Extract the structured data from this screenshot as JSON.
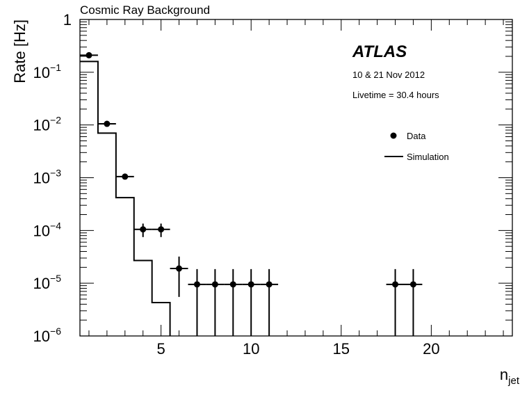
{
  "chart_data": {
    "type": "scatter",
    "title": "Cosmic Ray Background",
    "xlabel": "n",
    "xlabel_sub": "jet",
    "ylabel": "Rate [Hz]",
    "xlim": [
      0.5,
      24.5
    ],
    "ylim": [
      1e-06,
      1
    ],
    "yscale": "log",
    "grid": false,
    "x_ticks": [
      5,
      10,
      15,
      20
    ],
    "x_tick_labels": [
      "5",
      "10",
      "15",
      "20"
    ],
    "y_ticks": [
      1e-06,
      1e-05,
      0.0001,
      0.001,
      0.01,
      0.1,
      1
    ],
    "y_tick_labels": [
      {
        "base": "10",
        "exp": "−6"
      },
      {
        "base": "10",
        "exp": "−5"
      },
      {
        "base": "10",
        "exp": "−4"
      },
      {
        "base": "10",
        "exp": "−3"
      },
      {
        "base": "10",
        "exp": "−2"
      },
      {
        "base": "10",
        "exp": "−1"
      },
      {
        "base": "1",
        "exp": ""
      }
    ],
    "annotations": {
      "experiment": "ATLAS",
      "dates": "10 & 21 Nov 2012",
      "livetime": "Livetime = 30.4 hours"
    },
    "legend": {
      "placement": "top-right",
      "entries": [
        {
          "label": "Data",
          "marker": "point"
        },
        {
          "label": "Simulation",
          "marker": "line"
        }
      ]
    },
    "series": [
      {
        "name": "Data",
        "kind": "points",
        "points": [
          {
            "x": 1,
            "y": 0.21,
            "ylo": 0.2,
            "yhi": 0.22
          },
          {
            "x": 2,
            "y": 0.0105,
            "ylo": 0.0095,
            "yhi": 0.0115
          },
          {
            "x": 3,
            "y": 0.00105,
            "ylo": 0.00095,
            "yhi": 0.00115
          },
          {
            "x": 4,
            "y": 0.000105,
            "ylo": 7.5e-05,
            "yhi": 0.000135
          },
          {
            "x": 5,
            "y": 0.000105,
            "ylo": 7.5e-05,
            "yhi": 0.000135
          },
          {
            "x": 6,
            "y": 1.9e-05,
            "ylo": 5.5e-06,
            "yhi": 3.2e-05
          },
          {
            "x": 7,
            "y": 9.5e-06,
            "ylo": 1e-06,
            "yhi": 1.85e-05
          },
          {
            "x": 8,
            "y": 9.5e-06,
            "ylo": 1e-06,
            "yhi": 1.85e-05
          },
          {
            "x": 9,
            "y": 9.5e-06,
            "ylo": 1e-06,
            "yhi": 1.85e-05
          },
          {
            "x": 10,
            "y": 9.5e-06,
            "ylo": 1e-06,
            "yhi": 1.85e-05
          },
          {
            "x": 11,
            "y": 9.5e-06,
            "ylo": 1e-06,
            "yhi": 1.85e-05
          },
          {
            "x": 18,
            "y": 9.5e-06,
            "ylo": 1e-06,
            "yhi": 1.85e-05
          },
          {
            "x": 19,
            "y": 9.5e-06,
            "ylo": 1e-06,
            "yhi": 1.85e-05
          }
        ]
      },
      {
        "name": "Simulation",
        "kind": "histogram",
        "bins": [
          {
            "x": 1,
            "y": 0.16
          },
          {
            "x": 2,
            "y": 0.007
          },
          {
            "x": 3,
            "y": 0.00042
          },
          {
            "x": 4,
            "y": 2.7e-05
          },
          {
            "x": 5,
            "y": 4.3e-06
          }
        ]
      }
    ]
  }
}
